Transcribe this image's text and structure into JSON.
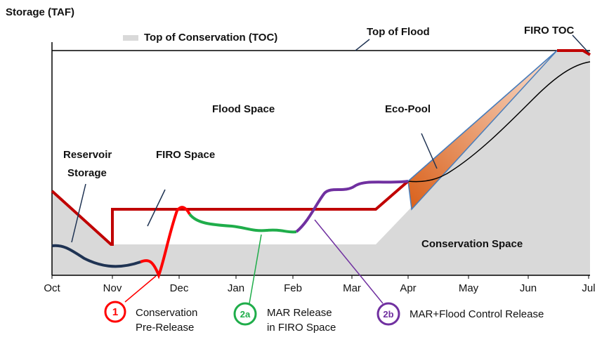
{
  "y_axis_label": "Storage (TAF)",
  "legend": {
    "toc": "Top of Conservation (TOC)"
  },
  "labels": {
    "top_of_flood": "Top of Flood",
    "firo_toc": "FIRO TOC",
    "flood_space": "Flood Space",
    "eco_pool": "Eco-Pool",
    "reservoir_storage": [
      "Reservoir",
      "Storage"
    ],
    "firo_space": "FIRO Space",
    "conservation_space": "Conservation Space"
  },
  "months": [
    "Oct",
    "Nov",
    "Dec",
    "Jan",
    "Feb",
    "Mar",
    "Apr",
    "May",
    "Jun",
    "Jul"
  ],
  "callouts": [
    {
      "badge": "1",
      "lines": [
        "Conservation",
        "Pre-Release"
      ]
    },
    {
      "badge": "2a",
      "lines": [
        "MAR Release",
        "in FIRO Space"
      ]
    },
    {
      "badge": "2b",
      "lines": [
        "MAR+Flood Control Release"
      ]
    }
  ]
}
